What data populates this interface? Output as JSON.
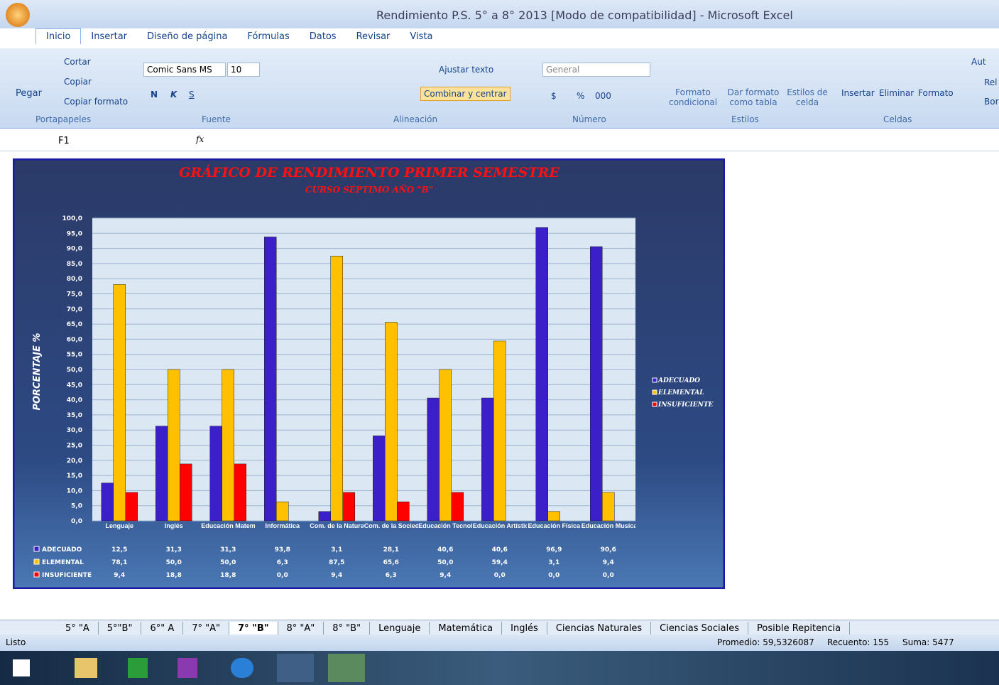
{
  "window": {
    "title": "Rendimiento P.S. 5° a 8° 2013  [Modo de compatibilidad] - Microsoft Excel"
  },
  "tabs": [
    "Inicio",
    "Insertar",
    "Diseño de página",
    "Fórmulas",
    "Datos",
    "Revisar",
    "Vista"
  ],
  "ribbon": {
    "portapapeles": {
      "label": "Portapapeles",
      "paste": "Pegar",
      "cut": "Cortar",
      "copy": "Copiar",
      "format_painter": "Copiar formato"
    },
    "fuente": {
      "label": "Fuente",
      "font": "Comic Sans MS",
      "size": "10",
      "bold": "N",
      "italic": "K",
      "underline": "S"
    },
    "alineacion": {
      "label": "Alineación",
      "wrap": "Ajustar texto",
      "merge": "Combinar y centrar"
    },
    "numero": {
      "label": "Número",
      "format": "General",
      "currency": "$",
      "percent": "%",
      "thousands": "000"
    },
    "estilos": {
      "label": "Estilos",
      "conditional": "Formato condicional",
      "table": "Dar formato como tabla",
      "cell": "Estilos de celda"
    },
    "celdas": {
      "label": "Celdas",
      "insert": "Insertar",
      "delete": "Eliminar",
      "format": "Formato"
    },
    "edicion": {
      "sum": "Aut",
      "fill": "Rel",
      "clear": "Bor"
    }
  },
  "formula_bar": {
    "name_box": "F1",
    "fx": "fx"
  },
  "chart_data": {
    "type": "bar",
    "title": "GRÁFICO DE RENDIMIENTO PRIMER SEMESTRE",
    "subtitle": "CURSO SÉPTIMO AÑO \"B\"",
    "y_label": "PORCENTAJE  %",
    "categories": [
      "Lenguaje",
      "Inglés",
      "Educación Matemática",
      "Informática",
      "Com. de la Naturaleza",
      "Com. de la Sociedad",
      "Educación Tecnológica",
      "Educación Artística",
      "Educación Física",
      "Educación Musical"
    ],
    "series": [
      {
        "name": "ADECUADO",
        "color": "#3b1fc9",
        "values": [
          12.5,
          31.3,
          31.3,
          93.8,
          3.1,
          28.1,
          40.6,
          40.6,
          96.9,
          90.6
        ],
        "value_labels": [
          "12,5",
          "31,3",
          "31,3",
          "93,8",
          "3,1",
          "28,1",
          "40,6",
          "40,6",
          "96,9",
          "90,6"
        ]
      },
      {
        "name": "ELEMENTAL",
        "color": "#ffc000",
        "values": [
          78.1,
          50,
          50,
          6.3,
          87.5,
          65.6,
          50,
          59.4,
          3.1,
          9.4
        ],
        "value_labels": [
          "78,1",
          "50,0",
          "50,0",
          "6,3",
          "87,5",
          "65,6",
          "50,0",
          "59,4",
          "3,1",
          "9,4"
        ]
      },
      {
        "name": "INSUFICIENTE",
        "color": "#ff0000",
        "values": [
          9.4,
          18.8,
          18.8,
          0,
          9.4,
          6.3,
          9.4,
          0,
          0,
          0
        ],
        "value_labels": [
          "9,4",
          "18,8",
          "18,8",
          "0,0",
          "9,4",
          "6,3",
          "9,4",
          "0,0",
          "0,0",
          "0,0"
        ]
      }
    ],
    "ylim": [
      0,
      100
    ],
    "yticks": [
      {
        "value": 0,
        "label": "0,0"
      },
      {
        "value": 5,
        "label": "5,0"
      },
      {
        "value": 10,
        "label": "10,0"
      },
      {
        "value": 15,
        "label": "15,0"
      },
      {
        "value": 20,
        "label": "20,0"
      },
      {
        "value": 25,
        "label": "25,0"
      },
      {
        "value": 30,
        "label": "30,0"
      },
      {
        "value": 35,
        "label": "35,0"
      },
      {
        "value": 40,
        "label": "40,0"
      },
      {
        "value": 45,
        "label": "45,0"
      },
      {
        "value": 50,
        "label": "50,0"
      },
      {
        "value": 55,
        "label": "55,0"
      },
      {
        "value": 60,
        "label": "60,0"
      },
      {
        "value": 65,
        "label": "65,0"
      },
      {
        "value": 70,
        "label": "70,0"
      },
      {
        "value": 75,
        "label": "75,0"
      },
      {
        "value": 80,
        "label": "80,0"
      },
      {
        "value": 85,
        "label": "85,0"
      },
      {
        "value": 90,
        "label": "90,0"
      },
      {
        "value": 95,
        "label": "95,0"
      },
      {
        "value": 100,
        "label": "100,0"
      }
    ],
    "grid": true,
    "legend": "right"
  },
  "sheet_tabs": [
    "5° \"A",
    "5°\"B\"",
    "6°\" A",
    "7° \"A\"",
    "7° \"B\"",
    "8° \"A\"",
    "8° \"B\"",
    "Lenguaje",
    "Matemática",
    "Inglés",
    "Ciencias Naturales",
    "Ciencias Sociales",
    "Posible Repitencia"
  ],
  "status_bar": {
    "ready": "Listo",
    "average": "Promedio: 59,5326087",
    "count": "Recuento: 155",
    "sum": "Suma: 5477"
  }
}
